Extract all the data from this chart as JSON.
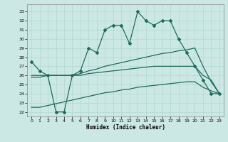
{
  "xlabel": "Humidex (Indice chaleur)",
  "bg_color": "#cce8e4",
  "line_color": "#1e6b5e",
  "grid_color": "#b0d8d2",
  "x_ticks": [
    0,
    1,
    2,
    3,
    4,
    5,
    6,
    7,
    8,
    9,
    10,
    11,
    12,
    13,
    14,
    15,
    16,
    17,
    18,
    19,
    20,
    21,
    22,
    23
  ],
  "y_ticks": [
    22,
    23,
    24,
    25,
    26,
    27,
    28,
    29,
    30,
    31,
    32,
    33
  ],
  "ylim": [
    21.5,
    33.8
  ],
  "xlim": [
    -0.5,
    23.5
  ],
  "series1_x": [
    0,
    1,
    2,
    3,
    4,
    5,
    6,
    7,
    8,
    9,
    10,
    11,
    12,
    13,
    14,
    15,
    16,
    17,
    18,
    19,
    20,
    21,
    22,
    23
  ],
  "series1_y": [
    27.5,
    26.5,
    26.0,
    22.0,
    22.0,
    26.0,
    26.5,
    29.0,
    28.5,
    31.0,
    31.5,
    31.5,
    29.5,
    33.0,
    32.0,
    31.5,
    32.0,
    32.0,
    30.0,
    28.5,
    27.0,
    25.5,
    24.0,
    24.0
  ],
  "series2_x": [
    0,
    1,
    2,
    3,
    4,
    5,
    6,
    7,
    8,
    9,
    10,
    11,
    12,
    13,
    14,
    15,
    16,
    17,
    18,
    19,
    20,
    21,
    22,
    23
  ],
  "series2_y": [
    26.0,
    26.0,
    26.0,
    26.0,
    26.0,
    26.0,
    26.2,
    26.5,
    26.7,
    27.0,
    27.2,
    27.4,
    27.6,
    27.8,
    28.0,
    28.2,
    28.4,
    28.5,
    28.7,
    28.8,
    29.0,
    27.0,
    25.3,
    24.0
  ],
  "series3_x": [
    0,
    1,
    2,
    3,
    4,
    5,
    6,
    7,
    8,
    9,
    10,
    11,
    12,
    13,
    14,
    15,
    16,
    17,
    18,
    19,
    20,
    21,
    22,
    23
  ],
  "series3_y": [
    25.8,
    25.8,
    26.0,
    26.0,
    26.0,
    26.0,
    26.0,
    26.2,
    26.3,
    26.4,
    26.5,
    26.6,
    26.7,
    26.8,
    26.9,
    27.0,
    27.0,
    27.0,
    27.0,
    27.0,
    27.0,
    26.0,
    25.5,
    24.0
  ],
  "series4_x": [
    0,
    1,
    2,
    3,
    4,
    5,
    6,
    7,
    8,
    9,
    10,
    11,
    12,
    13,
    14,
    15,
    16,
    17,
    18,
    19,
    20,
    21,
    22,
    23
  ],
  "series4_y": [
    22.5,
    22.5,
    22.7,
    22.9,
    23.1,
    23.3,
    23.5,
    23.7,
    23.9,
    24.1,
    24.2,
    24.4,
    24.5,
    24.7,
    24.8,
    24.9,
    25.0,
    25.1,
    25.2,
    25.3,
    25.3,
    24.7,
    24.3,
    24.0
  ]
}
